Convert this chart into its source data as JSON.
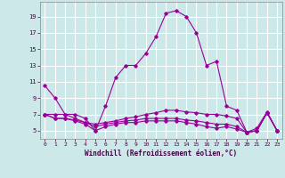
{
  "xlabel": "Windchill (Refroidissement éolien,°C)",
  "bg_color": "#cce8e8",
  "grid_color": "#ffffff",
  "line_color": "#990099",
  "xlim": [
    -0.5,
    23.5
  ],
  "ylim": [
    4.0,
    20.8
  ],
  "yticks": [
    5,
    7,
    9,
    11,
    13,
    15,
    17,
    19
  ],
  "xticks": [
    0,
    1,
    2,
    3,
    4,
    5,
    6,
    7,
    8,
    9,
    10,
    11,
    12,
    13,
    14,
    15,
    16,
    17,
    18,
    19,
    20,
    21,
    22,
    23
  ],
  "line1_y": [
    10.5,
    9.0,
    7.0,
    7.0,
    6.5,
    5.0,
    8.0,
    11.5,
    13.0,
    13.0,
    14.5,
    16.5,
    19.4,
    19.7,
    19.0,
    17.0,
    13.0,
    13.5,
    8.0,
    7.5,
    4.8,
    5.3,
    7.3,
    5.0
  ],
  "line2_y": [
    7.0,
    7.0,
    7.0,
    6.5,
    6.0,
    5.8,
    6.0,
    6.2,
    6.5,
    6.7,
    7.0,
    7.2,
    7.5,
    7.5,
    7.3,
    7.2,
    7.0,
    7.0,
    6.8,
    6.5,
    4.8,
    5.0,
    7.2,
    5.0
  ],
  "line3_y": [
    7.0,
    6.5,
    6.5,
    6.3,
    6.0,
    5.5,
    5.8,
    6.0,
    6.2,
    6.3,
    6.5,
    6.5,
    6.5,
    6.5,
    6.3,
    6.2,
    6.0,
    5.8,
    5.8,
    5.5,
    4.8,
    5.0,
    7.2,
    5.0
  ],
  "line4_y": [
    7.0,
    6.5,
    6.5,
    6.2,
    5.8,
    5.0,
    5.5,
    5.8,
    6.0,
    6.0,
    6.2,
    6.2,
    6.2,
    6.2,
    6.0,
    5.8,
    5.5,
    5.3,
    5.5,
    5.2,
    4.8,
    5.0,
    7.2,
    5.0
  ]
}
